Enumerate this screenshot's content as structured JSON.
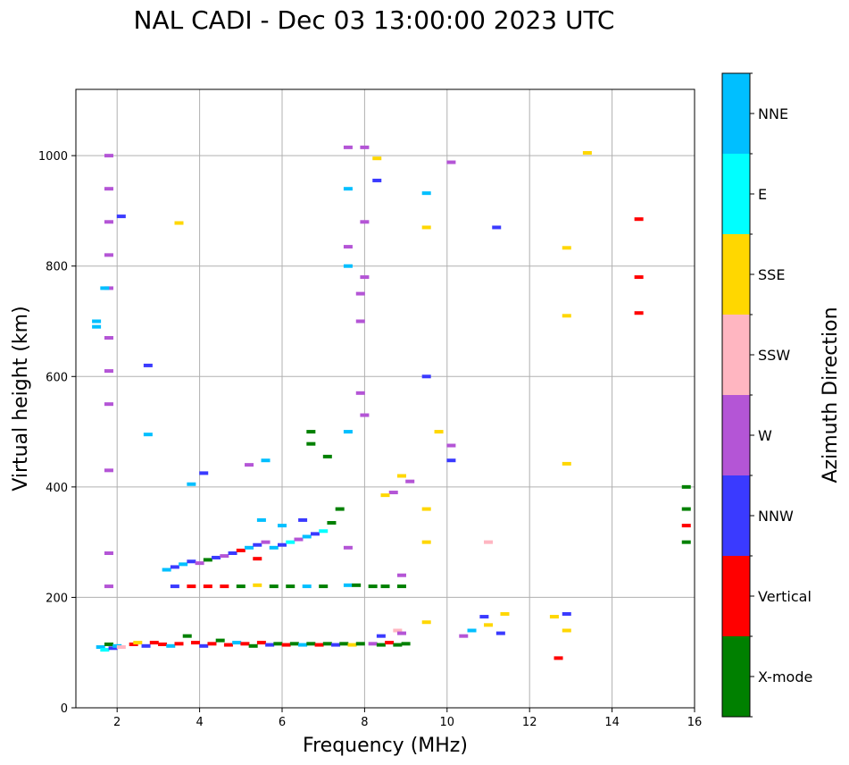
{
  "chart_data": {
    "type": "scatter",
    "title": "NAL CADI - Dec 03 13:00:00 2023 UTC",
    "xlabel": "Frequency (MHz)",
    "ylabel": "Virtual height (km)",
    "xlim": [
      1,
      16
    ],
    "ylim": [
      0,
      1120
    ],
    "xticks": [
      2,
      4,
      6,
      8,
      10,
      12,
      14,
      16
    ],
    "yticks": [
      0,
      200,
      400,
      600,
      800,
      1000
    ],
    "grid": true,
    "colorbar": {
      "label": "Azimuth Direction",
      "categories": [
        {
          "name": "X-mode",
          "color": "#008000"
        },
        {
          "name": "Vertical",
          "color": "#ff0000"
        },
        {
          "name": "NNW",
          "color": "#3a3aff"
        },
        {
          "name": "W",
          "color": "#b455d6"
        },
        {
          "name": "SSW",
          "color": "#ffb6c1"
        },
        {
          "name": "SSE",
          "color": "#ffd700"
        },
        {
          "name": "E",
          "color": "#00ffff"
        },
        {
          "name": "NNE",
          "color": "#00bfff"
        }
      ]
    },
    "points": [
      {
        "x": 1.6,
        "y": 110,
        "c": "NNE"
      },
      {
        "x": 1.7,
        "y": 105,
        "c": "E"
      },
      {
        "x": 1.8,
        "y": 115,
        "c": "X-mode"
      },
      {
        "x": 1.9,
        "y": 108,
        "c": "NNW"
      },
      {
        "x": 2.0,
        "y": 112,
        "c": "NNE"
      },
      {
        "x": 2.1,
        "y": 110,
        "c": "SSW"
      },
      {
        "x": 2.4,
        "y": 115,
        "c": "Vertical"
      },
      {
        "x": 2.5,
        "y": 118,
        "c": "SSE"
      },
      {
        "x": 2.7,
        "y": 112,
        "c": "NNW"
      },
      {
        "x": 2.9,
        "y": 118,
        "c": "Vertical"
      },
      {
        "x": 3.1,
        "y": 115,
        "c": "Vertical"
      },
      {
        "x": 3.3,
        "y": 112,
        "c": "NNE"
      },
      {
        "x": 3.5,
        "y": 116,
        "c": "Vertical"
      },
      {
        "x": 3.7,
        "y": 130,
        "c": "X-mode"
      },
      {
        "x": 3.9,
        "y": 118,
        "c": "Vertical"
      },
      {
        "x": 4.1,
        "y": 112,
        "c": "NNW"
      },
      {
        "x": 4.3,
        "y": 116,
        "c": "Vertical"
      },
      {
        "x": 4.5,
        "y": 122,
        "c": "X-mode"
      },
      {
        "x": 4.7,
        "y": 114,
        "c": "Vertical"
      },
      {
        "x": 4.9,
        "y": 118,
        "c": "NNE"
      },
      {
        "x": 5.1,
        "y": 116,
        "c": "Vertical"
      },
      {
        "x": 5.3,
        "y": 112,
        "c": "X-mode"
      },
      {
        "x": 5.5,
        "y": 118,
        "c": "Vertical"
      },
      {
        "x": 5.7,
        "y": 114,
        "c": "NNW"
      },
      {
        "x": 5.9,
        "y": 116,
        "c": "X-mode"
      },
      {
        "x": 6.1,
        "y": 114,
        "c": "Vertical"
      },
      {
        "x": 6.3,
        "y": 116,
        "c": "X-mode"
      },
      {
        "x": 6.5,
        "y": 114,
        "c": "NNE"
      },
      {
        "x": 6.7,
        "y": 116,
        "c": "X-mode"
      },
      {
        "x": 6.9,
        "y": 114,
        "c": "Vertical"
      },
      {
        "x": 7.1,
        "y": 116,
        "c": "X-mode"
      },
      {
        "x": 7.3,
        "y": 114,
        "c": "NNW"
      },
      {
        "x": 7.5,
        "y": 116,
        "c": "X-mode"
      },
      {
        "x": 7.7,
        "y": 114,
        "c": "SSE"
      },
      {
        "x": 7.9,
        "y": 116,
        "c": "X-mode"
      },
      {
        "x": 8.2,
        "y": 116,
        "c": "W"
      },
      {
        "x": 8.4,
        "y": 114,
        "c": "X-mode"
      },
      {
        "x": 8.6,
        "y": 118,
        "c": "Vertical"
      },
      {
        "x": 8.8,
        "y": 114,
        "c": "X-mode"
      },
      {
        "x": 9.0,
        "y": 116,
        "c": "X-mode"
      },
      {
        "x": 8.4,
        "y": 130,
        "c": "NNW"
      },
      {
        "x": 8.8,
        "y": 140,
        "c": "SSW"
      },
      {
        "x": 8.9,
        "y": 135,
        "c": "W"
      },
      {
        "x": 3.2,
        "y": 250,
        "c": "NNE"
      },
      {
        "x": 3.4,
        "y": 255,
        "c": "NNW"
      },
      {
        "x": 3.6,
        "y": 260,
        "c": "NNE"
      },
      {
        "x": 3.8,
        "y": 265,
        "c": "NNW"
      },
      {
        "x": 4.0,
        "y": 262,
        "c": "W"
      },
      {
        "x": 4.2,
        "y": 268,
        "c": "X-mode"
      },
      {
        "x": 4.4,
        "y": 272,
        "c": "NNW"
      },
      {
        "x": 4.6,
        "y": 275,
        "c": "W"
      },
      {
        "x": 4.8,
        "y": 280,
        "c": "NNW"
      },
      {
        "x": 5.0,
        "y": 285,
        "c": "Vertical"
      },
      {
        "x": 5.2,
        "y": 290,
        "c": "NNE"
      },
      {
        "x": 5.4,
        "y": 295,
        "c": "NNW"
      },
      {
        "x": 5.6,
        "y": 300,
        "c": "W"
      },
      {
        "x": 5.8,
        "y": 290,
        "c": "NNE"
      },
      {
        "x": 6.0,
        "y": 295,
        "c": "NNW"
      },
      {
        "x": 6.2,
        "y": 300,
        "c": "E"
      },
      {
        "x": 6.4,
        "y": 305,
        "c": "W"
      },
      {
        "x": 6.6,
        "y": 310,
        "c": "NNE"
      },
      {
        "x": 6.8,
        "y": 315,
        "c": "NNW"
      },
      {
        "x": 7.0,
        "y": 320,
        "c": "E"
      },
      {
        "x": 7.2,
        "y": 335,
        "c": "X-mode"
      },
      {
        "x": 7.4,
        "y": 360,
        "c": "X-mode"
      },
      {
        "x": 7.6,
        "y": 290,
        "c": "W"
      },
      {
        "x": 5.5,
        "y": 340,
        "c": "NNE"
      },
      {
        "x": 6.0,
        "y": 330,
        "c": "NNE"
      },
      {
        "x": 6.5,
        "y": 340,
        "c": "NNW"
      },
      {
        "x": 5.4,
        "y": 270,
        "c": "Vertical"
      },
      {
        "x": 3.4,
        "y": 220,
        "c": "NNW"
      },
      {
        "x": 3.8,
        "y": 220,
        "c": "Vertical"
      },
      {
        "x": 4.2,
        "y": 220,
        "c": "Vertical"
      },
      {
        "x": 4.6,
        "y": 220,
        "c": "Vertical"
      },
      {
        "x": 5.0,
        "y": 220,
        "c": "X-mode"
      },
      {
        "x": 5.4,
        "y": 222,
        "c": "SSE"
      },
      {
        "x": 5.8,
        "y": 220,
        "c": "X-mode"
      },
      {
        "x": 6.2,
        "y": 220,
        "c": "X-mode"
      },
      {
        "x": 6.6,
        "y": 220,
        "c": "NNE"
      },
      {
        "x": 7.0,
        "y": 220,
        "c": "X-mode"
      },
      {
        "x": 7.6,
        "y": 222,
        "c": "NNE"
      },
      {
        "x": 7.8,
        "y": 222,
        "c": "X-mode"
      },
      {
        "x": 8.2,
        "y": 220,
        "c": "X-mode"
      },
      {
        "x": 8.5,
        "y": 220,
        "c": "X-mode"
      },
      {
        "x": 8.9,
        "y": 220,
        "c": "X-mode"
      },
      {
        "x": 8.9,
        "y": 240,
        "c": "W"
      },
      {
        "x": 8.7,
        "y": 390,
        "c": "W"
      },
      {
        "x": 8.5,
        "y": 385,
        "c": "SSE"
      },
      {
        "x": 8.9,
        "y": 420,
        "c": "SSE"
      },
      {
        "x": 9.1,
        "y": 410,
        "c": "W"
      },
      {
        "x": 10.4,
        "y": 130,
        "c": "W"
      },
      {
        "x": 10.6,
        "y": 140,
        "c": "NNE"
      },
      {
        "x": 10.9,
        "y": 165,
        "c": "NNW"
      },
      {
        "x": 11.0,
        "y": 150,
        "c": "SSE"
      },
      {
        "x": 11.3,
        "y": 135,
        "c": "NNW"
      },
      {
        "x": 11.4,
        "y": 170,
        "c": "SSE"
      },
      {
        "x": 12.6,
        "y": 165,
        "c": "SSE"
      },
      {
        "x": 12.9,
        "y": 170,
        "c": "NNW"
      },
      {
        "x": 12.9,
        "y": 140,
        "c": "SSE"
      },
      {
        "x": 12.7,
        "y": 90,
        "c": "Vertical"
      },
      {
        "x": 9.5,
        "y": 155,
        "c": "SSE"
      },
      {
        "x": 14.65,
        "y": 885,
        "c": "Vertical"
      },
      {
        "x": 14.65,
        "y": 780,
        "c": "Vertical"
      },
      {
        "x": 14.65,
        "y": 715,
        "c": "Vertical"
      },
      {
        "x": 15.8,
        "y": 330,
        "c": "Vertical"
      },
      {
        "x": 15.8,
        "y": 360,
        "c": "X-mode"
      },
      {
        "x": 15.8,
        "y": 400,
        "c": "X-mode"
      },
      {
        "x": 15.8,
        "y": 300,
        "c": "X-mode"
      },
      {
        "x": 1.8,
        "y": 1000,
        "c": "W"
      },
      {
        "x": 1.8,
        "y": 940,
        "c": "W"
      },
      {
        "x": 1.8,
        "y": 880,
        "c": "W"
      },
      {
        "x": 1.8,
        "y": 820,
        "c": "W"
      },
      {
        "x": 1.8,
        "y": 760,
        "c": "W"
      },
      {
        "x": 1.8,
        "y": 670,
        "c": "W"
      },
      {
        "x": 1.8,
        "y": 610,
        "c": "W"
      },
      {
        "x": 1.8,
        "y": 550,
        "c": "W"
      },
      {
        "x": 1.8,
        "y": 430,
        "c": "W"
      },
      {
        "x": 1.8,
        "y": 280,
        "c": "W"
      },
      {
        "x": 1.8,
        "y": 220,
        "c": "W"
      },
      {
        "x": 1.5,
        "y": 700,
        "c": "NNE"
      },
      {
        "x": 1.5,
        "y": 690,
        "c": "NNE"
      },
      {
        "x": 1.7,
        "y": 760,
        "c": "NNE"
      },
      {
        "x": 2.75,
        "y": 620,
        "c": "NNW"
      },
      {
        "x": 2.75,
        "y": 495,
        "c": "NNE"
      },
      {
        "x": 3.5,
        "y": 878,
        "c": "SSE"
      },
      {
        "x": 2.1,
        "y": 890,
        "c": "NNW"
      },
      {
        "x": 7.6,
        "y": 1015,
        "c": "W"
      },
      {
        "x": 7.6,
        "y": 940,
        "c": "NNE"
      },
      {
        "x": 7.6,
        "y": 835,
        "c": "W"
      },
      {
        "x": 7.6,
        "y": 800,
        "c": "NNE"
      },
      {
        "x": 7.6,
        "y": 500,
        "c": "NNE"
      },
      {
        "x": 7.9,
        "y": 750,
        "c": "W"
      },
      {
        "x": 7.9,
        "y": 700,
        "c": "W"
      },
      {
        "x": 7.9,
        "y": 570,
        "c": "W"
      },
      {
        "x": 8.0,
        "y": 1015,
        "c": "W"
      },
      {
        "x": 8.0,
        "y": 880,
        "c": "W"
      },
      {
        "x": 8.0,
        "y": 780,
        "c": "W"
      },
      {
        "x": 8.0,
        "y": 530,
        "c": "W"
      },
      {
        "x": 8.3,
        "y": 995,
        "c": "SSE"
      },
      {
        "x": 8.3,
        "y": 955,
        "c": "NNW"
      },
      {
        "x": 9.5,
        "y": 932,
        "c": "NNE"
      },
      {
        "x": 9.5,
        "y": 870,
        "c": "SSE"
      },
      {
        "x": 9.5,
        "y": 600,
        "c": "NNW"
      },
      {
        "x": 9.5,
        "y": 360,
        "c": "SSE"
      },
      {
        "x": 9.5,
        "y": 300,
        "c": "SSE"
      },
      {
        "x": 9.8,
        "y": 500,
        "c": "SSE"
      },
      {
        "x": 10.1,
        "y": 988,
        "c": "W"
      },
      {
        "x": 10.1,
        "y": 475,
        "c": "W"
      },
      {
        "x": 10.1,
        "y": 448,
        "c": "NNW"
      },
      {
        "x": 11.0,
        "y": 300,
        "c": "SSW"
      },
      {
        "x": 11.2,
        "y": 870,
        "c": "NNW"
      },
      {
        "x": 12.9,
        "y": 833,
        "c": "SSE"
      },
      {
        "x": 12.9,
        "y": 710,
        "c": "SSE"
      },
      {
        "x": 12.9,
        "y": 442,
        "c": "SSE"
      },
      {
        "x": 13.4,
        "y": 1005,
        "c": "SSE"
      },
      {
        "x": 6.7,
        "y": 500,
        "c": "X-mode"
      },
      {
        "x": 6.7,
        "y": 478,
        "c": "X-mode"
      },
      {
        "x": 7.1,
        "y": 455,
        "c": "X-mode"
      },
      {
        "x": 5.6,
        "y": 448,
        "c": "NNE"
      },
      {
        "x": 5.2,
        "y": 440,
        "c": "W"
      },
      {
        "x": 4.1,
        "y": 425,
        "c": "NNW"
      },
      {
        "x": 3.8,
        "y": 405,
        "c": "NNE"
      }
    ]
  }
}
